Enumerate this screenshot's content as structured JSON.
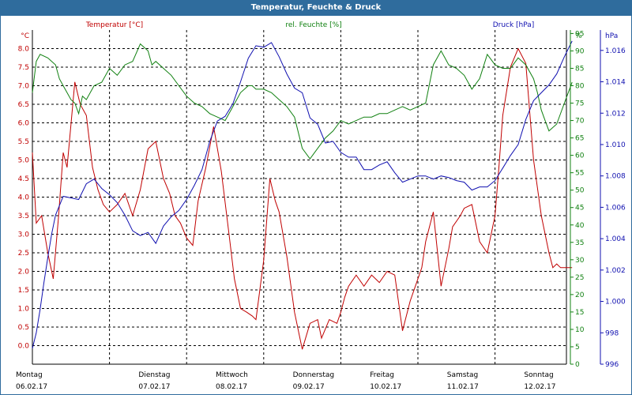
{
  "window": {
    "title": "Temperatur, Feuchte & Druck"
  },
  "colors": {
    "temperature": "#c00000",
    "humidity": "#108010",
    "pressure": "#1010b0",
    "grid": "#000000",
    "titlebar": "#2f6c9d"
  },
  "chart_data": {
    "type": "line",
    "title": "Temperatur, Feuchte & Druck",
    "grid": true,
    "x_range": [
      0,
      7
    ],
    "x_ticks": [
      {
        "x": 0,
        "day": "Montag",
        "date": "06.02.17"
      },
      {
        "x": 1,
        "day": "Dienstag",
        "date": "07.02.17"
      },
      {
        "x": 2,
        "day": "Mittwoch",
        "date": "08.02.17"
      },
      {
        "x": 3,
        "day": "Donnerstag",
        "date": "09.02.17"
      },
      {
        "x": 4,
        "day": "Freitag",
        "date": "10.02.17"
      },
      {
        "x": 5,
        "day": "Samstag",
        "date": "11.02.17"
      },
      {
        "x": 6,
        "day": "Sonntag",
        "date": "12.02.17"
      }
    ],
    "axes": {
      "temperature": {
        "label": "Temperatur [°C]",
        "unit": "°C",
        "range": [
          -0.5,
          8.5
        ],
        "ticks": [
          "0.0",
          "0.5",
          "1.0",
          "1.5",
          "2.0",
          "2.5",
          "3.0",
          "3.5",
          "4.0",
          "4.5",
          "5.0",
          "5.5",
          "6.0",
          "6.5",
          "7.0",
          "7.5",
          "8.0"
        ]
      },
      "humidity": {
        "label": "rel. Feuchte [%]",
        "unit": "%",
        "range": [
          0,
          96
        ],
        "ticks": [
          "0",
          "5",
          "10",
          "15",
          "20",
          "25",
          "30",
          "35",
          "40",
          "45",
          "50",
          "55",
          "60",
          "65",
          "70",
          "75",
          "80",
          "85",
          "90",
          "95"
        ]
      },
      "pressure": {
        "label": "Druck [hPa]",
        "unit": "hPa",
        "range": [
          996,
          1017.3
        ],
        "ticks": [
          "996",
          "998",
          "1.000",
          "1.002",
          "1.004",
          "1.006",
          "1.008",
          "1.010",
          "1.012",
          "1.014",
          "1.016"
        ]
      }
    },
    "series": [
      {
        "name": "Temperatur [°C]",
        "axis": "temperature",
        "x": [
          0,
          0.05,
          0.12,
          0.2,
          0.27,
          0.34,
          0.4,
          0.45,
          0.55,
          0.62,
          0.7,
          0.78,
          0.85,
          0.92,
          1.0,
          1.1,
          1.2,
          1.3,
          1.4,
          1.5,
          1.6,
          1.7,
          1.78,
          1.85,
          1.92,
          2.0,
          2.08,
          2.15,
          2.25,
          2.35,
          2.45,
          2.55,
          2.62,
          2.7,
          2.78,
          2.85,
          2.9,
          3.0,
          3.08,
          3.15,
          3.2,
          3.3,
          3.4,
          3.5,
          3.6,
          3.7,
          3.75,
          3.85,
          3.95,
          4.0,
          4.05,
          4.1,
          4.2,
          4.3,
          4.4,
          4.5,
          4.6,
          4.7,
          4.8,
          4.9,
          5.0,
          5.05,
          5.1,
          5.2,
          5.3,
          5.4,
          5.45,
          5.55,
          5.6,
          5.7,
          5.8,
          5.9,
          6.0,
          6.05,
          6.1,
          6.2,
          6.3,
          6.4,
          6.5,
          6.6,
          6.7,
          6.75,
          6.8,
          6.85,
          6.9,
          6.95,
          7.0
        ],
        "values": [
          5.2,
          3.3,
          3.5,
          2.5,
          1.8,
          3.5,
          5.2,
          4.8,
          7.1,
          6.5,
          6.2,
          4.8,
          4.2,
          3.8,
          3.6,
          3.8,
          4.1,
          3.5,
          4.2,
          5.3,
          5.5,
          4.5,
          4.1,
          3.5,
          3.3,
          2.9,
          2.7,
          3.9,
          4.8,
          5.9,
          4.7,
          3.0,
          1.8,
          1.0,
          0.9,
          0.8,
          0.7,
          2.3,
          4.5,
          3.9,
          3.6,
          2.4,
          0.9,
          -0.1,
          0.6,
          0.7,
          0.2,
          0.7,
          0.6,
          0.9,
          1.3,
          1.6,
          1.9,
          1.6,
          1.9,
          1.7,
          2.0,
          1.9,
          0.4,
          1.2,
          1.8,
          2.1,
          2.8,
          3.6,
          1.6,
          2.6,
          3.2,
          3.5,
          3.7,
          3.8,
          2.8,
          2.5,
          3.5,
          4.8,
          6.2,
          7.5,
          8.0,
          7.6,
          5.0,
          3.5,
          2.5,
          2.1,
          2.2,
          2.1,
          2.1,
          2.1,
          2.1
        ]
      },
      {
        "name": "rel. Feuchte [%]",
        "axis": "humidity",
        "x": [
          0,
          0.05,
          0.1,
          0.2,
          0.3,
          0.35,
          0.4,
          0.45,
          0.5,
          0.55,
          0.6,
          0.65,
          0.7,
          0.8,
          0.9,
          1.0,
          1.1,
          1.2,
          1.3,
          1.4,
          1.5,
          1.55,
          1.6,
          1.7,
          1.8,
          1.9,
          2.0,
          2.1,
          2.2,
          2.3,
          2.4,
          2.5,
          2.6,
          2.7,
          2.8,
          2.85,
          2.9,
          3.0,
          3.1,
          3.2,
          3.3,
          3.4,
          3.5,
          3.6,
          3.7,
          3.8,
          3.9,
          4.0,
          4.1,
          4.2,
          4.3,
          4.4,
          4.5,
          4.6,
          4.7,
          4.8,
          4.9,
          5.0,
          5.1,
          5.2,
          5.3,
          5.35,
          5.4,
          5.5,
          5.6,
          5.7,
          5.8,
          5.9,
          6.0,
          6.1,
          6.2,
          6.3,
          6.4,
          6.5,
          6.55,
          6.6,
          6.65,
          6.7,
          6.8,
          6.9,
          7.0
        ],
        "values": [
          78,
          87,
          89,
          88,
          86,
          82,
          80,
          78,
          76,
          75,
          72,
          77,
          76,
          80,
          81,
          85,
          83,
          86,
          87,
          92,
          90,
          86,
          87,
          85,
          83,
          80,
          77,
          75,
          74,
          72,
          71,
          70,
          74,
          78,
          80,
          80,
          79,
          79,
          78,
          76,
          74,
          71,
          62,
          59,
          62,
          65,
          67,
          70,
          69,
          70,
          71,
          71,
          72,
          72,
          73,
          74,
          73,
          74,
          75,
          86,
          90,
          88,
          86,
          85,
          83,
          79,
          82,
          89,
          86,
          85,
          85,
          88,
          86,
          82,
          78,
          73,
          70,
          67,
          69,
          75,
          81
        ]
      },
      {
        "name": "Druck [hPa]",
        "axis": "pressure",
        "x": [
          0,
          0.05,
          0.1,
          0.15,
          0.2,
          0.25,
          0.3,
          0.4,
          0.5,
          0.6,
          0.7,
          0.8,
          0.9,
          1.0,
          1.1,
          1.2,
          1.3,
          1.4,
          1.5,
          1.6,
          1.7,
          1.8,
          1.9,
          2.0,
          2.1,
          2.2,
          2.3,
          2.4,
          2.5,
          2.6,
          2.7,
          2.8,
          2.9,
          3.0,
          3.1,
          3.2,
          3.3,
          3.4,
          3.5,
          3.6,
          3.7,
          3.8,
          3.9,
          4.0,
          4.1,
          4.2,
          4.3,
          4.4,
          4.5,
          4.6,
          4.7,
          4.8,
          4.9,
          5.0,
          5.1,
          5.2,
          5.3,
          5.4,
          5.5,
          5.6,
          5.7,
          5.8,
          5.9,
          6.0,
          6.1,
          6.2,
          6.3,
          6.4,
          6.5,
          6.6,
          6.7,
          6.8,
          6.9,
          7.0
        ],
        "values": [
          997.0,
          998.0,
          999.5,
          1001.2,
          1002.8,
          1004.3,
          1005.5,
          1006.7,
          1006.6,
          1006.5,
          1007.5,
          1007.8,
          1007.2,
          1006.8,
          1006.3,
          1005.5,
          1004.5,
          1004.2,
          1004.4,
          1003.7,
          1004.8,
          1005.4,
          1005.8,
          1006.5,
          1007.4,
          1008.4,
          1010.2,
          1011.5,
          1011.8,
          1012.6,
          1014.0,
          1015.5,
          1016.3,
          1016.2,
          1016.5,
          1015.6,
          1014.5,
          1013.6,
          1013.3,
          1011.7,
          1011.3,
          1010.1,
          1010.2,
          1009.5,
          1009.2,
          1009.2,
          1008.4,
          1008.4,
          1008.7,
          1008.9,
          1008.2,
          1007.6,
          1007.8,
          1008.0,
          1008.0,
          1007.8,
          1008.0,
          1007.9,
          1007.7,
          1007.6,
          1007.1,
          1007.3,
          1007.3,
          1007.7,
          1008.5,
          1009.3,
          1010.0,
          1011.6,
          1012.8,
          1013.3,
          1013.8,
          1014.5,
          1015.6,
          1016.6
        ]
      }
    ]
  }
}
